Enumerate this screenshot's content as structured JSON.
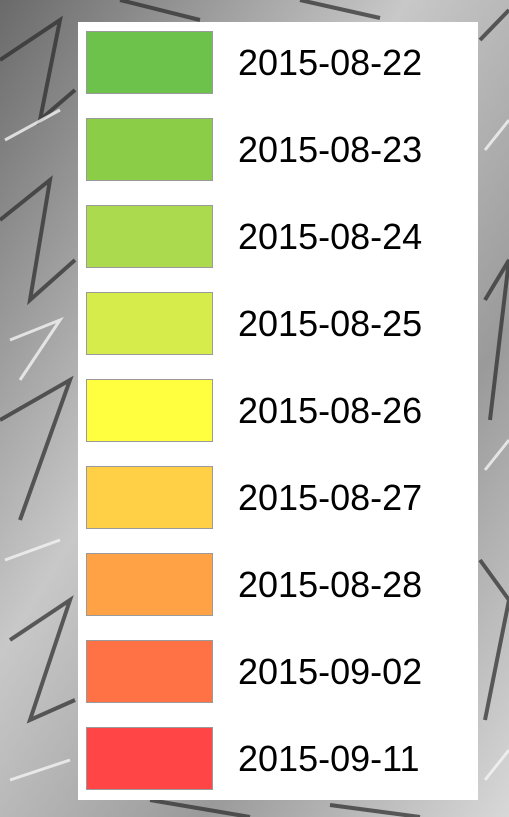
{
  "legend": {
    "items": [
      {
        "label": "2015-08-22",
        "color": "#6cc24a"
      },
      {
        "label": "2015-08-23",
        "color": "#8bcd47"
      },
      {
        "label": "2015-08-24",
        "color": "#acda4e"
      },
      {
        "label": "2015-08-25",
        "color": "#d6ec4b"
      },
      {
        "label": "2015-08-26",
        "color": "#ffff40"
      },
      {
        "label": "2015-08-27",
        "color": "#ffd046"
      },
      {
        "label": "2015-08-28",
        "color": "#ffa245"
      },
      {
        "label": "2015-09-02",
        "color": "#ff7245"
      },
      {
        "label": "2015-09-11",
        "color": "#ff4545"
      }
    ]
  }
}
